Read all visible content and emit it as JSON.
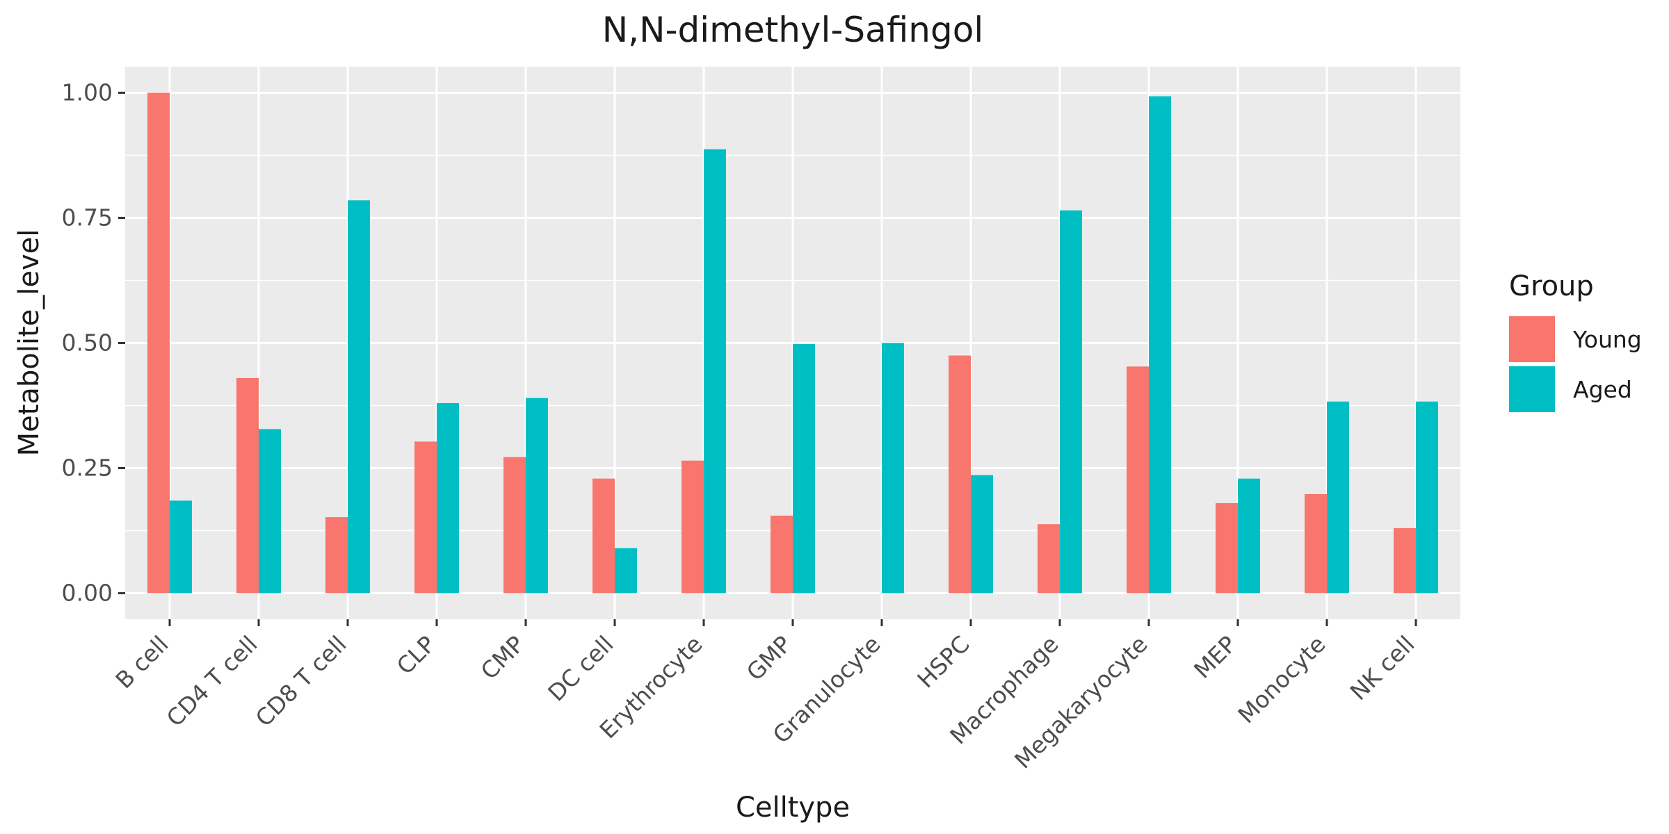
{
  "chart_data": {
    "type": "bar",
    "title": "N,N-dimethyl-Safingol",
    "xlabel": "Celltype",
    "ylabel": "Metabolite_level",
    "categories": [
      "B cell",
      "CD4 T cell",
      "CD8 T cell",
      "CLP",
      "CMP",
      "DC cell",
      "Erythrocyte",
      "GMP",
      "Granulocyte",
      "HSPC",
      "Macrophage",
      "Megakaryocyte",
      "MEP",
      "Monocyte",
      "NK cell"
    ],
    "series": [
      {
        "name": "Young",
        "color": "#F8766D",
        "values": [
          1.0,
          0.43,
          0.152,
          0.303,
          0.272,
          0.229,
          0.265,
          0.155,
          null,
          0.475,
          0.138,
          0.453,
          0.18,
          0.198,
          0.13
        ]
      },
      {
        "name": "Aged",
        "color": "#00BFC4",
        "values": [
          0.185,
          0.328,
          0.785,
          0.38,
          0.39,
          0.09,
          0.887,
          0.498,
          0.5,
          0.236,
          0.765,
          0.993,
          0.229,
          0.383,
          0.383
        ]
      }
    ],
    "ylim": [
      -0.052,
      1.052
    ],
    "yticks": [
      0,
      0.25,
      0.5,
      0.75,
      1.0
    ],
    "ytick_labels": [
      "0.00",
      "0.25",
      "0.50",
      "0.75",
      "1.00"
    ],
    "legend": {
      "title": "Group",
      "position": "right"
    },
    "grid": true
  }
}
